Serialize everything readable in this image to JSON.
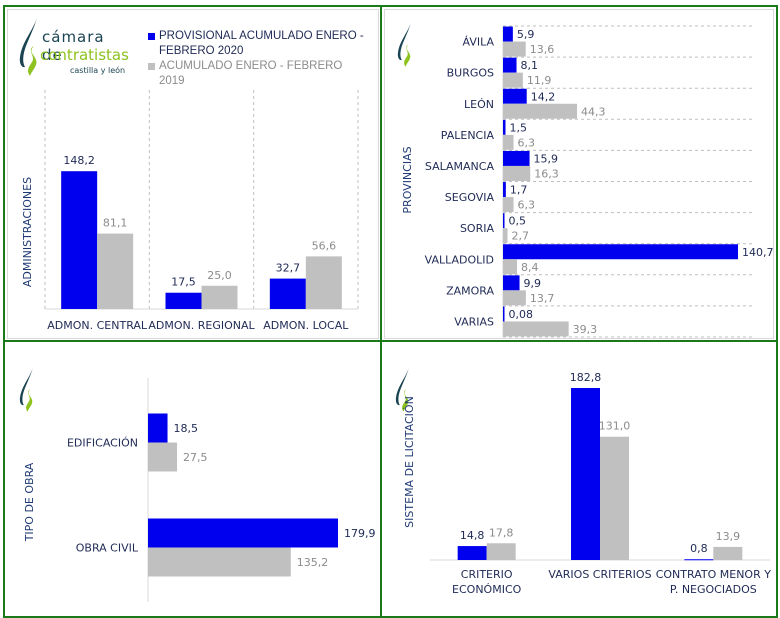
{
  "colors": {
    "series_2020": "#0000ee",
    "series_2019": "#c0c0c0",
    "label_2020": "#1f2a55",
    "label_2019": "#8c8c8c",
    "axis_title": "#1f3a75",
    "frame": "#1a7a1a",
    "logo_dark": "#1b4452",
    "logo_green": "#8dc21f"
  },
  "logo": {
    "line1": "cámara de",
    "line2": "contratistas",
    "line3": "castilla y león"
  },
  "legend": {
    "items": [
      {
        "label": "PROVISIONAL ACUMULADO ENERO - FEBRERO 2020",
        "label_line1": "PROVISIONAL ACUMULADO ENERO -",
        "label_line2": "FEBRERO 2020",
        "color": "#0000ee"
      },
      {
        "label": "ACUMULADO ENERO - FEBRERO 2019",
        "color": "#c0c0c0"
      }
    ]
  },
  "chart_data": [
    {
      "id": "administraciones",
      "type": "bar",
      "orientation": "vertical",
      "ylabel": "ADMINISTRACIONES",
      "categories": [
        "ADMON. CENTRAL",
        "ADMON. REGIONAL",
        "ADMON. LOCAL"
      ],
      "series": [
        {
          "name": "PROVISIONAL ACUMULADO ENERO - FEBRERO 2020",
          "values": [
            148.2,
            17.5,
            32.7
          ],
          "labels": [
            "148,2",
            "17,5",
            "32,7"
          ]
        },
        {
          "name": "ACUMULADO ENERO - FEBRERO 2019",
          "values": [
            81.1,
            25.0,
            56.6
          ],
          "labels": [
            "81,1",
            "25,0",
            "56,6"
          ]
        }
      ],
      "ylim": [
        0,
        185
      ],
      "grid": "vertical dashed separators"
    },
    {
      "id": "provincias",
      "type": "bar",
      "orientation": "horizontal",
      "ylabel": "PROVINCIAS",
      "categories": [
        "ÁVILA",
        "BURGOS",
        "LEÓN",
        "PALENCIA",
        "SALAMANCA",
        "SEGOVIA",
        "SORIA",
        "VALLADOLID",
        "ZAMORA",
        "VARIAS"
      ],
      "series": [
        {
          "name": "PROVISIONAL ACUMULADO ENERO - FEBRERO 2020",
          "values": [
            5.9,
            8.1,
            14.2,
            1.5,
            15.9,
            1.7,
            0.5,
            140.7,
            9.9,
            0.08
          ],
          "labels": [
            "5,9",
            "8,1",
            "14,2",
            "1,5",
            "15,9",
            "1,7",
            "0,5",
            "140,7",
            "9,9",
            "0,08"
          ]
        },
        {
          "name": "ACUMULADO ENERO - FEBRERO 2019",
          "values": [
            13.6,
            11.9,
            44.3,
            6.3,
            16.3,
            6.3,
            2.7,
            8.4,
            13.7,
            39.3
          ],
          "labels": [
            "13,6",
            "11,9",
            "44,3",
            "6,3",
            "16,3",
            "6,3",
            "2,7",
            "8,4",
            "13,7",
            "39,3"
          ]
        }
      ],
      "xlim": [
        0,
        140.7
      ],
      "grid": "horizontal dashed separators"
    },
    {
      "id": "tipo-obra",
      "type": "bar",
      "orientation": "horizontal",
      "ylabel": "TIPO DE OBRA",
      "categories": [
        "EDIFICACIÓN",
        "OBRA CIVIL"
      ],
      "series": [
        {
          "name": "PROVISIONAL ACUMULADO ENERO - FEBRERO 2020",
          "values": [
            18.5,
            179.9
          ],
          "labels": [
            "18,5",
            "179,9"
          ]
        },
        {
          "name": "ACUMULADO ENERO - FEBRERO 2019",
          "values": [
            27.5,
            135.2
          ],
          "labels": [
            "27,5",
            "135,2"
          ]
        }
      ],
      "xlim": [
        0,
        179.9
      ]
    },
    {
      "id": "sistema-licitacion",
      "type": "bar",
      "orientation": "vertical",
      "ylabel": "SISTEMA DE LICITACIÓN",
      "categories": [
        "CRITERIO ECONÓMICO",
        "VARIOS CRITERIOS",
        "CONTRATO MENOR Y P. NEGOCIADOS"
      ],
      "category_lines": [
        [
          "CRITERIO",
          "ECONÓMICO"
        ],
        [
          "VARIOS CRITERIOS"
        ],
        [
          "CONTRATO MENOR Y",
          "P. NEGOCIADOS"
        ]
      ],
      "series": [
        {
          "name": "PROVISIONAL ACUMULADO ENERO - FEBRERO 2020",
          "values": [
            14.8,
            182.8,
            0.8
          ],
          "labels": [
            "14,8",
            "182,8",
            "0,8"
          ]
        },
        {
          "name": "ACUMULADO ENERO - FEBRERO 2019",
          "values": [
            17.8,
            131.0,
            13.9
          ],
          "labels": [
            "17,8",
            "131,0",
            "13,9"
          ]
        }
      ],
      "ylim": [
        0,
        182.8
      ]
    }
  ]
}
